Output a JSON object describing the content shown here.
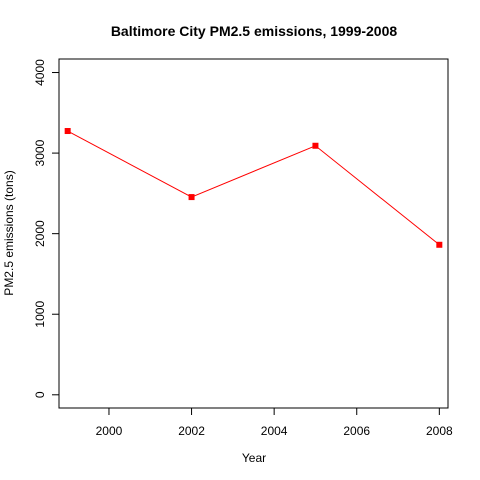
{
  "chart_data": {
    "type": "line",
    "title": "Baltimore City PM2.5 emissions, 1999-2008",
    "xlabel": "Year",
    "ylabel": "PM2.5 emissions (tons)",
    "x": [
      1999,
      2002,
      2005,
      2008
    ],
    "series": [
      {
        "values": [
          3274,
          2454,
          3091,
          1862
        ],
        "color": "#ff0000",
        "marker": "square"
      }
    ],
    "xlim": [
      1998.79,
      2008.21
    ],
    "ylim": [
      -163.9,
      4167.9
    ],
    "xticks": [
      2000,
      2002,
      2004,
      2006,
      2008
    ],
    "yticks": [
      0,
      1000,
      2000,
      3000,
      4000
    ],
    "grid": false,
    "legend": "none",
    "colors": {
      "line": "#ff0000",
      "axes": "#000000",
      "background": "#ffffff"
    }
  }
}
